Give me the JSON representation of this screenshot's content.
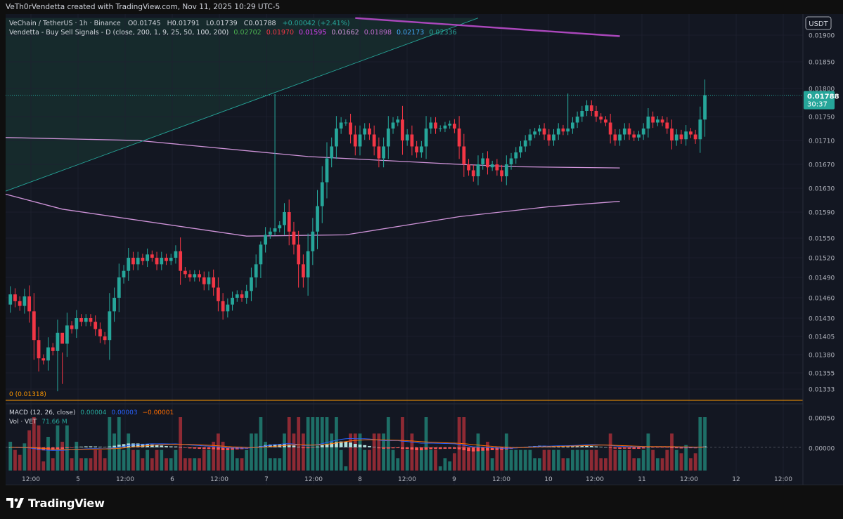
{
  "header": {
    "text": "VeTh0rVendetta created with TradingView.com, Nov 11, 2025 10:29 UTC-5"
  },
  "legend": {
    "symbol": "VeChain / TetherUS · 1h · Binance",
    "open": "O0.01745",
    "high": "H0.01791",
    "low": "L0.01739",
    "close": "C0.01788",
    "change": "+0.00042 (+2.41%)",
    "indicator": "Vendetta - Buy Sell Signals - D (close, 200, 1, 9, 25, 50, 100, 200)",
    "indicator_values": [
      {
        "text": "0.02702",
        "color": "#4caf50"
      },
      {
        "text": "0.01970",
        "color": "#f23645"
      },
      {
        "text": "0.01595",
        "color": "#e040fb"
      },
      {
        "text": "0.01662",
        "color": "#ce93d8"
      },
      {
        "text": "0.01898",
        "color": "#ba68c8"
      },
      {
        "text": "0.02173",
        "color": "#42a5f5"
      },
      {
        "text": "0.02336",
        "color": "#26a69a"
      }
    ],
    "zero_label": "0 (0.01318)"
  },
  "macd_legend": {
    "label": "MACD (12, 26, close)",
    "values": [
      {
        "text": "0.00004",
        "color": "#26a69a"
      },
      {
        "text": "0.00003",
        "color": "#2962ff"
      },
      {
        "text": "−0.00001",
        "color": "#ff6d00"
      }
    ],
    "vol_label": "Vol · VET",
    "vol_value": "71.66 M"
  },
  "currency": "USDT",
  "last_price": {
    "value": "0.01788",
    "countdown": "30:37"
  },
  "logo_text": "TradingView",
  "colors": {
    "up": "#26a69a",
    "down": "#f23645",
    "background": "#131722",
    "grid": "#1f2230"
  },
  "chart_data": {
    "type": "candlestick",
    "interval": "1h",
    "price_axis": {
      "labels": [
        "0.01900",
        "0.01850",
        "0.01800",
        "0.01750",
        "0.01710",
        "0.01670",
        "0.01630",
        "0.01590",
        "0.01550",
        "0.01520",
        "0.01490",
        "0.01460",
        "0.01430",
        "0.01405",
        "0.01380",
        "0.01355",
        "0.01333"
      ],
      "range": [
        0.01318,
        0.01932
      ]
    },
    "time_axis": {
      "labels": [
        "12:00",
        "5",
        "12:00",
        "6",
        "12:00",
        "7",
        "12:00",
        "8",
        "12:00",
        "9",
        "12:00",
        "10",
        "12:00",
        "11",
        "12:00",
        "12",
        "12:00"
      ],
      "range_hours": [
        0,
        168
      ]
    },
    "candle_start_hour": 1,
    "candle_closes": [
      0.01465,
      0.01455,
      0.01448,
      0.01462,
      0.0144,
      0.014,
      0.01375,
      0.01372,
      0.0139,
      0.01385,
      0.0141,
      0.01395,
      0.0142,
      0.01415,
      0.0143,
      0.01425,
      0.0143,
      0.01425,
      0.01415,
      0.01405,
      0.014,
      0.0144,
      0.0146,
      0.0149,
      0.015,
      0.0152,
      0.0151,
      0.0152,
      0.01515,
      0.01525,
      0.0152,
      0.0151,
      0.0152,
      0.01515,
      0.0152,
      0.0153,
      0.015,
      0.01495,
      0.0149,
      0.01495,
      0.0149,
      0.0148,
      0.0149,
      0.01475,
      0.01455,
      0.0144,
      0.0145,
      0.0146,
      0.01465,
      0.0146,
      0.0147,
      0.0149,
      0.0151,
      0.0154,
      0.01555,
      0.0156,
      0.01565,
      0.0157,
      0.0159,
      0.0156,
      0.0154,
      0.0151,
      0.0149,
      0.0153,
      0.0156,
      0.016,
      0.0164,
      0.0168,
      0.017,
      0.0173,
      0.0174,
      0.0174,
      0.0172,
      0.017,
      0.0172,
      0.0173,
      0.0172,
      0.017,
      0.0168,
      0.017,
      0.0173,
      0.0174,
      0.01745,
      0.0171,
      0.0172,
      0.017,
      0.0169,
      0.017,
      0.0173,
      0.0174,
      0.0173,
      0.0173,
      0.01735,
      0.01738,
      0.0173,
      0.017,
      0.0167,
      0.0166,
      0.0165,
      0.0167,
      0.0168,
      0.01665,
      0.0167,
      0.0166,
      0.0165,
      0.0167,
      0.0168,
      0.0169,
      0.017,
      0.0171,
      0.0172,
      0.01725,
      0.0173,
      0.0172,
      0.0171,
      0.0172,
      0.0173,
      0.01725,
      0.0173,
      0.0174,
      0.0175,
      0.0176,
      0.0177,
      0.0176,
      0.0175,
      0.01745,
      0.0174,
      0.0172,
      0.0171,
      0.0172,
      0.0173,
      0.0172,
      0.01715,
      0.0172,
      0.0173,
      0.0175,
      0.0174,
      0.01745,
      0.0174,
      0.0173,
      0.0171,
      0.0172,
      0.01712,
      0.01725,
      0.0172,
      0.01712,
      0.01745,
      0.01788
    ],
    "candle_highs": {
      "11": 0.0134,
      "53": 0.01545,
      "56": 0.0179,
      "118": 0.01791
    },
    "candle_lows": {
      "10": 0.0133,
      "61": 0.01475
    },
    "ma_lines": [
      {
        "color": "#ce93d8",
        "points": [
          [
            0,
            0.01715
          ],
          [
            28,
            0.0171
          ],
          [
            64,
            0.01683
          ],
          [
            96,
            0.0167
          ],
          [
            108,
            0.01666
          ],
          [
            130,
            0.01664
          ]
        ]
      },
      {
        "color": "#ce93d8",
        "points": [
          [
            0,
            0.0162
          ],
          [
            12,
            0.01595
          ],
          [
            51,
            0.01553
          ],
          [
            72,
            0.01555
          ],
          [
            96,
            0.01583
          ],
          [
            115,
            0.01599
          ],
          [
            130,
            0.01608
          ]
        ]
      },
      {
        "color": "#26a69a",
        "points": [
          [
            0,
            0.01625
          ],
          [
            100,
            0.01932
          ]
        ]
      },
      {
        "color": "#ab47bc",
        "points": [
          [
            74,
            0.01932
          ],
          [
            130,
            0.01898
          ]
        ]
      }
    ],
    "zero_line": 0.01318,
    "macd_axis": {
      "labels": [
        "0.00050",
        "0.00000"
      ]
    },
    "macd": {
      "macd": 4e-05,
      "signal": 3e-05,
      "hist": -1e-05
    },
    "volume_last": "71.66 M"
  }
}
